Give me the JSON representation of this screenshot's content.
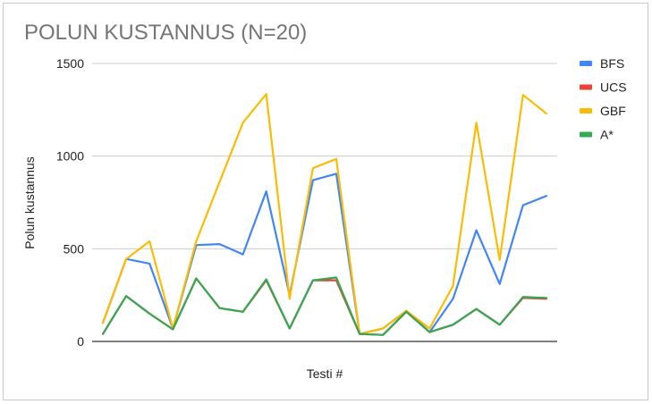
{
  "chart_data": {
    "type": "line",
    "title": "POLUN KUSTANNUS (N=20)",
    "xlabel": "Testi #",
    "ylabel": "Polun kustannus",
    "ylim": [
      0,
      1500
    ],
    "yticks": [
      0,
      500,
      1000,
      1500
    ],
    "grid": true,
    "legend_position": "right",
    "x": [
      1,
      2,
      3,
      4,
      5,
      6,
      7,
      8,
      9,
      10,
      11,
      12,
      13,
      14,
      15,
      16,
      17,
      18,
      19,
      20,
      21
    ],
    "series": [
      {
        "name": "BFS",
        "color": "#4285f4",
        "values": [
          100,
          445,
          420,
          70,
          520,
          525,
          470,
          810,
          250,
          870,
          905,
          40,
          70,
          165,
          50,
          230,
          600,
          310,
          735,
          785,
          null
        ]
      },
      {
        "name": "UCS",
        "color": "#ea4335",
        "values": [
          40,
          245,
          150,
          65,
          340,
          180,
          160,
          330,
          70,
          330,
          330,
          40,
          35,
          160,
          50,
          90,
          175,
          90,
          235,
          230,
          null
        ]
      },
      {
        "name": "GBF",
        "color": "#fbbc04",
        "values": [
          100,
          445,
          540,
          70,
          540,
          860,
          1180,
          1335,
          230,
          935,
          985,
          40,
          70,
          165,
          70,
          300,
          1180,
          440,
          1330,
          1230,
          null
        ]
      },
      {
        "name": "A*",
        "color": "#34a853",
        "values": [
          40,
          245,
          150,
          65,
          340,
          180,
          160,
          335,
          70,
          330,
          345,
          40,
          35,
          160,
          50,
          90,
          175,
          90,
          240,
          235,
          null
        ]
      }
    ]
  }
}
